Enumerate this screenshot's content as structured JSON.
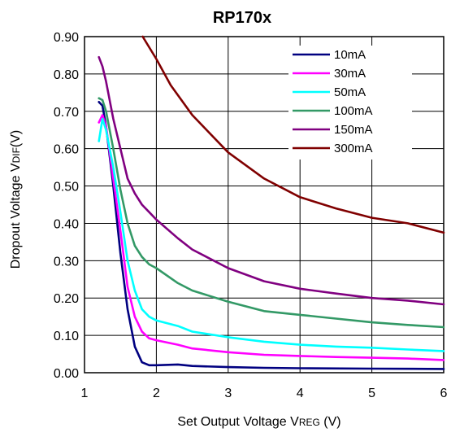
{
  "chart_data": {
    "type": "line",
    "title": "RP170x",
    "xlabel": {
      "prefix": "Set Output Voltage  V",
      "sub": "REG",
      "suffix": " (V)"
    },
    "ylabel": {
      "prefix": "Dropout Voltage V",
      "sub": "DIF",
      "suffix": "(V)"
    },
    "xlim": [
      1,
      6
    ],
    "ylim": [
      0,
      0.9
    ],
    "x_ticks": [
      1,
      2,
      3,
      4,
      5,
      6
    ],
    "x_tick_labels": [
      "1",
      "2",
      "3",
      "4",
      "5",
      "6"
    ],
    "y_ticks": [
      0,
      0.1,
      0.2,
      0.3,
      0.4,
      0.5,
      0.6,
      0.7,
      0.8,
      0.9
    ],
    "y_tick_labels": [
      "0.00",
      "0.10",
      "0.20",
      "0.30",
      "0.40",
      "0.50",
      "0.60",
      "0.70",
      "0.80",
      "0.90"
    ],
    "grid": true,
    "legend_position": "top-right",
    "series": [
      {
        "name": "10mA",
        "color": "#000080",
        "points": [
          [
            1.2,
            0.725
          ],
          [
            1.25,
            0.715
          ],
          [
            1.3,
            0.66
          ],
          [
            1.4,
            0.5
          ],
          [
            1.5,
            0.32
          ],
          [
            1.6,
            0.17
          ],
          [
            1.7,
            0.07
          ],
          [
            1.8,
            0.028
          ],
          [
            1.9,
            0.02
          ],
          [
            2.0,
            0.02
          ],
          [
            2.3,
            0.022
          ],
          [
            2.5,
            0.018
          ],
          [
            3.0,
            0.015
          ],
          [
            3.5,
            0.013
          ],
          [
            4.0,
            0.012
          ],
          [
            5.0,
            0.011
          ],
          [
            6.0,
            0.01
          ]
        ]
      },
      {
        "name": "30mA",
        "color": "#ff00ff",
        "points": [
          [
            1.2,
            0.67
          ],
          [
            1.25,
            0.69
          ],
          [
            1.3,
            0.66
          ],
          [
            1.4,
            0.52
          ],
          [
            1.5,
            0.38
          ],
          [
            1.6,
            0.23
          ],
          [
            1.7,
            0.15
          ],
          [
            1.8,
            0.11
          ],
          [
            1.9,
            0.092
          ],
          [
            2.0,
            0.087
          ],
          [
            2.3,
            0.075
          ],
          [
            2.5,
            0.065
          ],
          [
            3.0,
            0.055
          ],
          [
            3.5,
            0.048
          ],
          [
            4.0,
            0.045
          ],
          [
            4.5,
            0.042
          ],
          [
            5.0,
            0.04
          ],
          [
            5.5,
            0.038
          ],
          [
            6.0,
            0.034
          ]
        ]
      },
      {
        "name": "50mA",
        "color": "#00ffff",
        "points": [
          [
            1.2,
            0.62
          ],
          [
            1.25,
            0.68
          ],
          [
            1.3,
            0.65
          ],
          [
            1.4,
            0.55
          ],
          [
            1.5,
            0.43
          ],
          [
            1.6,
            0.3
          ],
          [
            1.7,
            0.22
          ],
          [
            1.8,
            0.17
          ],
          [
            1.9,
            0.15
          ],
          [
            2.0,
            0.14
          ],
          [
            2.3,
            0.125
          ],
          [
            2.5,
            0.11
          ],
          [
            3.0,
            0.095
          ],
          [
            3.5,
            0.083
          ],
          [
            4.0,
            0.075
          ],
          [
            4.5,
            0.07
          ],
          [
            5.0,
            0.067
          ],
          [
            5.5,
            0.062
          ],
          [
            6.0,
            0.058
          ]
        ]
      },
      {
        "name": "100mA",
        "color": "#339966",
        "points": [
          [
            1.2,
            0.735
          ],
          [
            1.25,
            0.73
          ],
          [
            1.3,
            0.7
          ],
          [
            1.4,
            0.6
          ],
          [
            1.5,
            0.49
          ],
          [
            1.6,
            0.4
          ],
          [
            1.7,
            0.34
          ],
          [
            1.8,
            0.31
          ],
          [
            1.9,
            0.29
          ],
          [
            2.0,
            0.28
          ],
          [
            2.3,
            0.24
          ],
          [
            2.5,
            0.22
          ],
          [
            3.0,
            0.19
          ],
          [
            3.5,
            0.165
          ],
          [
            4.0,
            0.155
          ],
          [
            4.5,
            0.145
          ],
          [
            5.0,
            0.135
          ],
          [
            5.5,
            0.128
          ],
          [
            6.0,
            0.122
          ]
        ]
      },
      {
        "name": "150mA",
        "color": "#800080",
        "points": [
          [
            1.2,
            0.845
          ],
          [
            1.25,
            0.82
          ],
          [
            1.3,
            0.78
          ],
          [
            1.4,
            0.68
          ],
          [
            1.5,
            0.6
          ],
          [
            1.6,
            0.52
          ],
          [
            1.7,
            0.48
          ],
          [
            1.8,
            0.45
          ],
          [
            1.9,
            0.43
          ],
          [
            2.0,
            0.41
          ],
          [
            2.3,
            0.36
          ],
          [
            2.5,
            0.33
          ],
          [
            3.0,
            0.28
          ],
          [
            3.5,
            0.245
          ],
          [
            4.0,
            0.225
          ],
          [
            4.5,
            0.212
          ],
          [
            5.0,
            0.2
          ],
          [
            5.5,
            0.193
          ],
          [
            6.0,
            0.183
          ]
        ]
      },
      {
        "name": "300mA",
        "color": "#800000",
        "points": [
          [
            1.81,
            0.9
          ],
          [
            2.0,
            0.84
          ],
          [
            2.2,
            0.77
          ],
          [
            2.5,
            0.69
          ],
          [
            3.0,
            0.59
          ],
          [
            3.5,
            0.52
          ],
          [
            4.0,
            0.47
          ],
          [
            4.5,
            0.44
          ],
          [
            5.0,
            0.415
          ],
          [
            5.5,
            0.4
          ],
          [
            6.0,
            0.375
          ]
        ]
      }
    ]
  }
}
